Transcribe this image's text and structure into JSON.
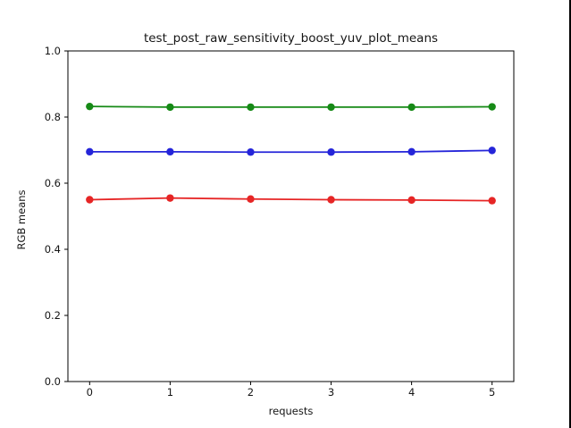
{
  "figure": {
    "title": "test_post_raw_sensitivity_boost_yuv_plot_means",
    "xlabel": "requests",
    "ylabel": "RGB means"
  },
  "colors": {
    "axis": "#000000",
    "tick_text": "#151515",
    "background": "#ffffff",
    "screen_edge": "#000000"
  },
  "chart_data": {
    "type": "line",
    "title": "test_post_raw_sensitivity_boost_yuv_plot_means",
    "xlabel": "requests",
    "ylabel": "RGB means",
    "x": [
      0,
      1,
      2,
      3,
      4,
      5
    ],
    "series": [
      {
        "name": "green",
        "color": "#168a16",
        "marker": "circle",
        "values": [
          0.832,
          0.83,
          0.83,
          0.83,
          0.83,
          0.831
        ]
      },
      {
        "name": "blue",
        "color": "#2525d9",
        "marker": "circle",
        "values": [
          0.695,
          0.695,
          0.694,
          0.694,
          0.695,
          0.699
        ]
      },
      {
        "name": "red",
        "color": "#e62525",
        "marker": "circle",
        "values": [
          0.55,
          0.555,
          0.552,
          0.55,
          0.549,
          0.547
        ]
      }
    ],
    "xlim": [
      -0.27,
      5.27
    ],
    "ylim": [
      0.0,
      1.0
    ],
    "x_ticks": [
      0,
      1,
      2,
      3,
      4,
      5
    ],
    "x_tick_labels": [
      "0",
      "1",
      "2",
      "3",
      "4",
      "5"
    ],
    "y_ticks": [
      0.0,
      0.2,
      0.4,
      0.6,
      0.8,
      1.0
    ],
    "y_tick_labels": [
      "0.0",
      "0.2",
      "0.4",
      "0.6",
      "0.8",
      "1.0"
    ],
    "grid": false,
    "legend_position": "none"
  }
}
